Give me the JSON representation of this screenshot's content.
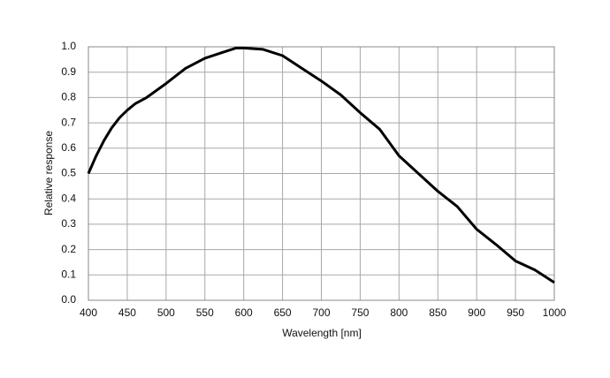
{
  "chart_data": {
    "type": "line",
    "xlabel": "Wavelength [nm]",
    "ylabel": "Relative response",
    "x": [
      400,
      410,
      420,
      430,
      440,
      450,
      460,
      475,
      500,
      525,
      550,
      575,
      590,
      600,
      625,
      650,
      675,
      700,
      725,
      750,
      775,
      800,
      825,
      850,
      875,
      900,
      925,
      950,
      975,
      1000
    ],
    "values": [
      0.5,
      0.57,
      0.63,
      0.68,
      0.72,
      0.75,
      0.775,
      0.8,
      0.855,
      0.915,
      0.955,
      0.98,
      0.995,
      0.995,
      0.99,
      0.965,
      0.915,
      0.865,
      0.81,
      0.74,
      0.675,
      0.57,
      0.5,
      0.43,
      0.37,
      0.28,
      0.22,
      0.155,
      0.12,
      0.07
    ],
    "color": "#000000",
    "xlim": [
      400,
      1000
    ],
    "xticks": [
      400,
      450,
      500,
      550,
      600,
      650,
      700,
      750,
      800,
      850,
      900,
      950,
      1000
    ],
    "ylim": [
      0,
      1
    ],
    "yticks": [
      {
        "value": 0,
        "label": "0.0"
      },
      0.1,
      0.2,
      0.3,
      0.4,
      0.5,
      0.6,
      0.7,
      0.8,
      0.9,
      {
        "value": 1,
        "label": "1.0"
      }
    ],
    "grid": true
  }
}
